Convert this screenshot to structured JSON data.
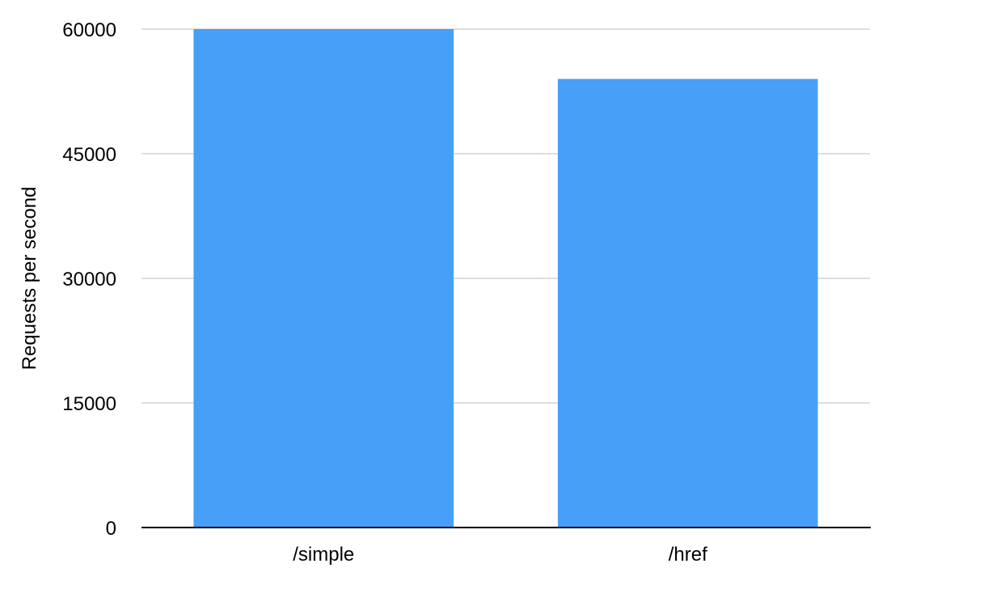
{
  "chart_data": {
    "type": "bar",
    "title": "",
    "xlabel": "",
    "ylabel": "Requests per second",
    "categories": [
      "/simple",
      "/href"
    ],
    "values": [
      60000,
      54000
    ],
    "ylim": [
      0,
      60000
    ],
    "yticks": [
      0,
      15000,
      30000,
      45000,
      60000
    ],
    "ytick_labels": [
      "0",
      "15000",
      "30000",
      "45000",
      "60000"
    ],
    "grid": true,
    "legend": "none",
    "bar_color": "#479ff8",
    "grid_color": "#bdbdbd",
    "axis_color": "#000000"
  }
}
